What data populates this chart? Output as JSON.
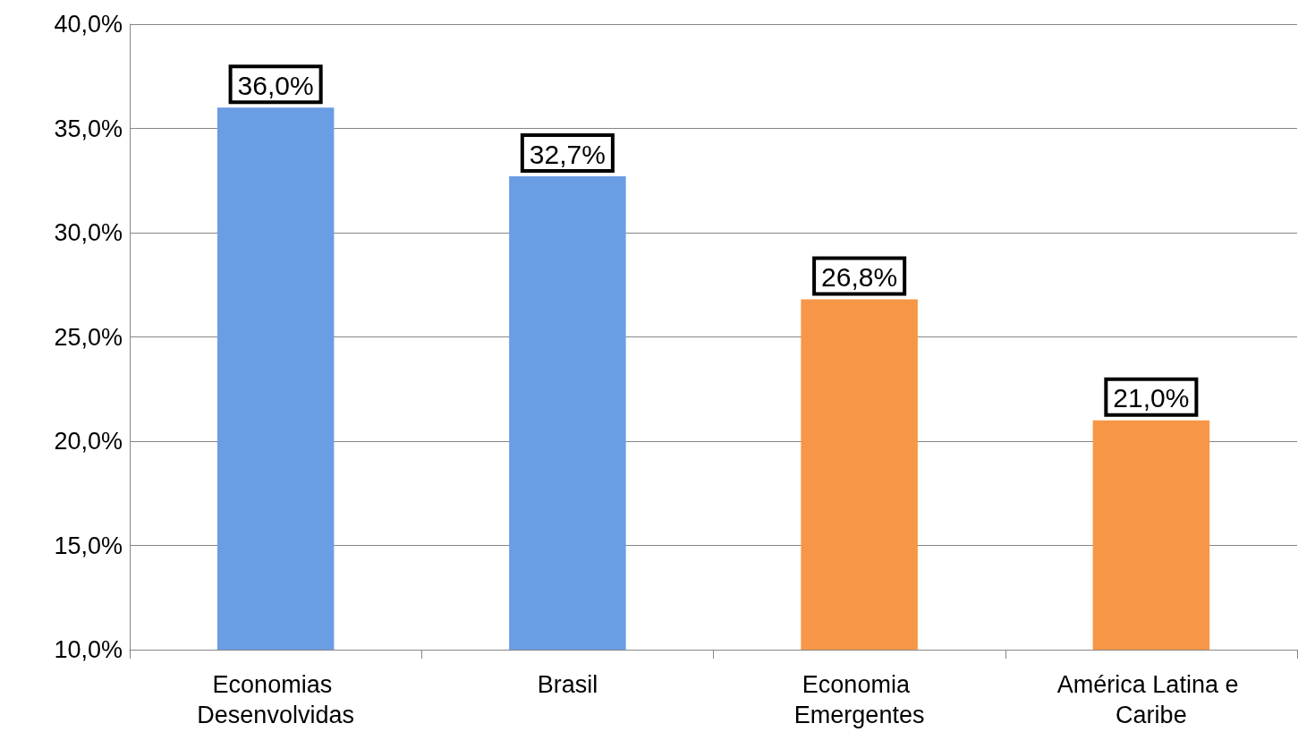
{
  "chart_data": {
    "type": "bar",
    "categories": [
      "Economias Desenvolvidas",
      "Brasil",
      "Economia Emergentes",
      "América Latina e Caribe"
    ],
    "values": [
      36.0,
      32.7,
      26.8,
      21.0
    ],
    "colors": [
      "#6a9de3",
      "#6a9de3",
      "#f79646",
      "#f79646"
    ],
    "value_labels": [
      "36,0%",
      "32,7%",
      "26,8%",
      "21,0%"
    ],
    "ylim": [
      10,
      40
    ],
    "yticks": [
      {
        "value": 10,
        "label": "10,0%"
      },
      {
        "value": 15,
        "label": "15,0%"
      },
      {
        "value": 20,
        "label": "20,0%"
      },
      {
        "value": 25,
        "label": "25,0%"
      },
      {
        "value": 30,
        "label": "30,0%"
      },
      {
        "value": 35,
        "label": "35,0%"
      },
      {
        "value": 40,
        "label": "40,0%"
      }
    ],
    "grid": "y"
  }
}
